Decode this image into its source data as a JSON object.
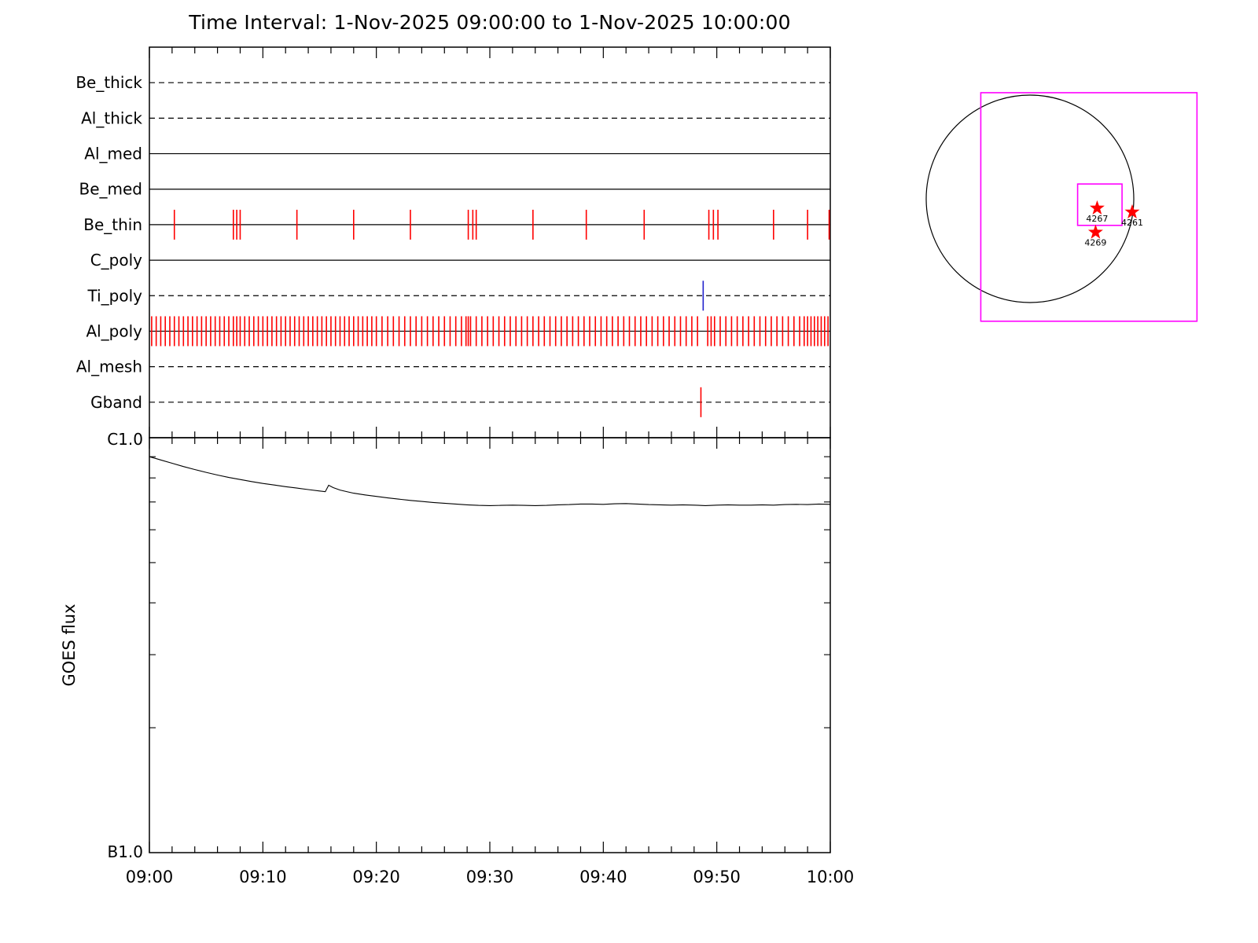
{
  "title": "Time Interval:  1-Nov-2025 09:00:00 to  1-Nov-2025 10:00:00",
  "colors": {
    "tick_red": "#ff0000",
    "tick_blue": "#2222cc",
    "fov_magenta": "#ff00ff",
    "axis_black": "#000000"
  },
  "chart_data": [
    {
      "type": "timeline",
      "name": "xrt-filter-exposure-timeline",
      "x_minutes_range": [
        0,
        60
      ],
      "x_start_time": "09:00",
      "rows": [
        {
          "label": "Be_thick",
          "style": "dashed",
          "ticks": []
        },
        {
          "label": "Al_thick",
          "style": "dashed",
          "ticks": []
        },
        {
          "label": "Al_med",
          "style": "solid",
          "ticks": []
        },
        {
          "label": "Be_med",
          "style": "solid",
          "ticks": []
        },
        {
          "label": "Be_thin",
          "style": "solid",
          "tick_color": "red",
          "ticks": [
            2.2,
            7.4,
            7.7,
            8.0,
            13.0,
            18.0,
            23.0,
            28.1,
            28.5,
            28.8,
            33.8,
            38.5,
            43.6,
            49.3,
            49.7,
            50.1,
            55.0,
            58.0,
            59.9
          ]
        },
        {
          "label": "C_poly",
          "style": "solid",
          "ticks": []
        },
        {
          "label": "Ti_poly",
          "style": "dashed",
          "tick_color": "blue",
          "ticks": [
            48.8
          ]
        },
        {
          "label": "Al_poly",
          "style": "solid",
          "tick_color": "red",
          "ticks": [
            0.2,
            0.6,
            1.0,
            1.4,
            1.8,
            2.2,
            2.6,
            3.0,
            3.4,
            3.8,
            4.2,
            4.6,
            5.0,
            5.4,
            5.8,
            6.2,
            6.6,
            7.0,
            7.4,
            7.7,
            8.0,
            8.4,
            8.8,
            9.2,
            9.6,
            10.0,
            10.4,
            10.8,
            11.2,
            11.6,
            12.0,
            12.4,
            12.8,
            13.2,
            13.6,
            14.0,
            14.4,
            14.8,
            15.2,
            15.6,
            16.0,
            16.4,
            16.8,
            17.2,
            17.6,
            18.0,
            18.4,
            18.8,
            19.2,
            19.6,
            20.0,
            20.5,
            21.0,
            21.5,
            22.0,
            22.5,
            23.0,
            23.5,
            24.0,
            24.5,
            25.0,
            25.5,
            26.0,
            26.5,
            27.0,
            27.5,
            27.9,
            28.1,
            28.3,
            28.8,
            29.3,
            29.8,
            30.3,
            30.8,
            31.3,
            31.8,
            32.3,
            32.8,
            33.3,
            33.8,
            34.3,
            34.8,
            35.3,
            35.8,
            36.3,
            36.8,
            37.3,
            37.8,
            38.3,
            38.8,
            39.3,
            39.8,
            40.3,
            40.8,
            41.3,
            41.8,
            42.3,
            42.8,
            43.3,
            43.8,
            44.3,
            44.8,
            45.3,
            45.8,
            46.3,
            46.8,
            47.3,
            47.8,
            48.3,
            49.2,
            49.5,
            49.8,
            50.3,
            50.8,
            51.3,
            51.8,
            52.3,
            52.8,
            53.3,
            53.8,
            54.3,
            54.8,
            55.3,
            55.8,
            56.3,
            56.8,
            57.3,
            57.7,
            58.0,
            58.3,
            58.6,
            58.9,
            59.2,
            59.5,
            59.8
          ]
        },
        {
          "label": "Al_mesh",
          "style": "dashed",
          "ticks": []
        },
        {
          "label": "Gband",
          "style": "dashed",
          "tick_color": "red",
          "ticks": [
            48.6
          ]
        }
      ]
    },
    {
      "type": "line",
      "name": "goes-flux-plot",
      "ylabel": "GOES flux",
      "yscale": "log",
      "y_top_label": "C1.0",
      "y_bottom_label": "B1.0",
      "ylim_c_units": [
        0.1,
        1.0
      ],
      "x_tick_labels": [
        "09:00",
        "09:10",
        "09:20",
        "09:30",
        "09:40",
        "09:50",
        "10:00"
      ],
      "x_minutes": [
        0,
        0.5,
        1,
        2,
        3,
        4,
        5,
        6,
        7,
        8,
        9,
        10,
        11,
        12,
        13,
        14,
        15,
        15.5,
        15.8,
        16.2,
        16.8,
        17.5,
        18,
        19,
        20,
        21,
        22,
        23,
        24,
        25,
        26,
        27,
        28,
        29,
        30,
        31,
        32,
        33,
        34,
        35,
        36,
        37,
        38,
        39,
        40,
        41,
        42,
        43,
        44,
        45,
        46,
        47,
        48,
        49,
        50,
        51,
        52,
        53,
        54,
        55,
        56,
        57,
        58,
        59,
        60
      ],
      "flux_c_units": [
        0.9,
        0.892,
        0.884,
        0.868,
        0.852,
        0.838,
        0.825,
        0.813,
        0.802,
        0.793,
        0.784,
        0.776,
        0.769,
        0.762,
        0.756,
        0.75,
        0.744,
        0.741,
        0.768,
        0.758,
        0.748,
        0.74,
        0.735,
        0.728,
        0.722,
        0.716,
        0.711,
        0.706,
        0.702,
        0.698,
        0.695,
        0.692,
        0.689,
        0.687,
        0.686,
        0.687,
        0.688,
        0.687,
        0.686,
        0.687,
        0.689,
        0.69,
        0.692,
        0.692,
        0.691,
        0.693,
        0.694,
        0.692,
        0.69,
        0.689,
        0.688,
        0.689,
        0.688,
        0.686,
        0.688,
        0.689,
        0.688,
        0.688,
        0.689,
        0.688,
        0.69,
        0.691,
        0.69,
        0.692,
        0.691
      ]
    },
    {
      "type": "solar_map",
      "name": "solar-pointing-map",
      "regions": [
        {
          "label": "4267",
          "dx": 0.647,
          "dy": 0.09
        },
        {
          "label": "4261",
          "dx": 0.985,
          "dy": 0.128
        },
        {
          "label": "4269",
          "dx": 0.632,
          "dy": 0.323
        }
      ],
      "fov_boxes": [
        {
          "x1": -0.474,
          "y1": -1.023,
          "x2": 1.609,
          "y2": 1.18
        },
        {
          "x1": 0.459,
          "y1": -0.143,
          "x2": 0.887,
          "y2": 0.256
        }
      ]
    }
  ]
}
